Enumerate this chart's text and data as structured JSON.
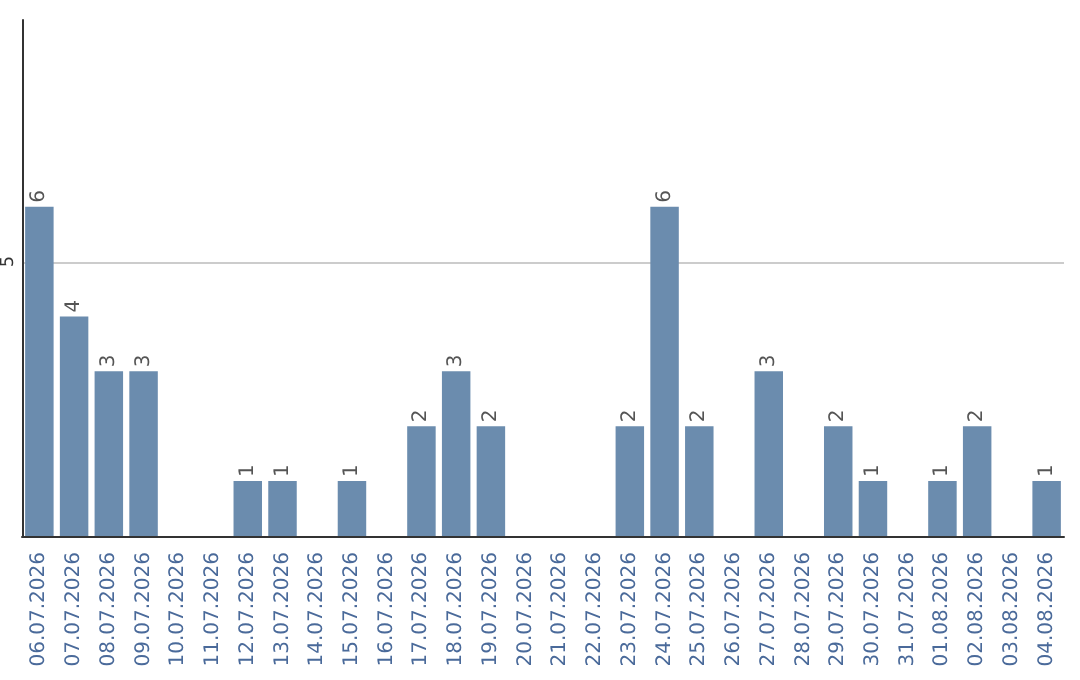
{
  "chart_data": {
    "type": "bar",
    "categories": [
      "06.07.2026",
      "07.07.2026",
      "08.07.2026",
      "09.07.2026",
      "10.07.2026",
      "11.07.2026",
      "12.07.2026",
      "13.07.2026",
      "14.07.2026",
      "15.07.2026",
      "16.07.2026",
      "17.07.2026",
      "18.07.2026",
      "19.07.2026",
      "20.07.2026",
      "21.07.2026",
      "22.07.2026",
      "23.07.2026",
      "24.07.2026",
      "25.07.2026",
      "26.07.2026",
      "27.07.2026",
      "28.07.2026",
      "29.07.2026",
      "30.07.2026",
      "31.07.2026",
      "01.08.2026",
      "02.08.2026",
      "03.08.2026",
      "04.08.2026"
    ],
    "values": [
      6,
      4,
      3,
      3,
      null,
      null,
      1,
      1,
      null,
      1,
      null,
      2,
      3,
      2,
      null,
      null,
      null,
      2,
      6,
      2,
      null,
      3,
      null,
      2,
      1,
      null,
      1,
      2,
      null,
      1
    ],
    "color": "#6b8cae",
    "ylim": [
      0,
      9.4
    ],
    "yticks": [
      5
    ],
    "grid": "y",
    "data_labels": true
  }
}
